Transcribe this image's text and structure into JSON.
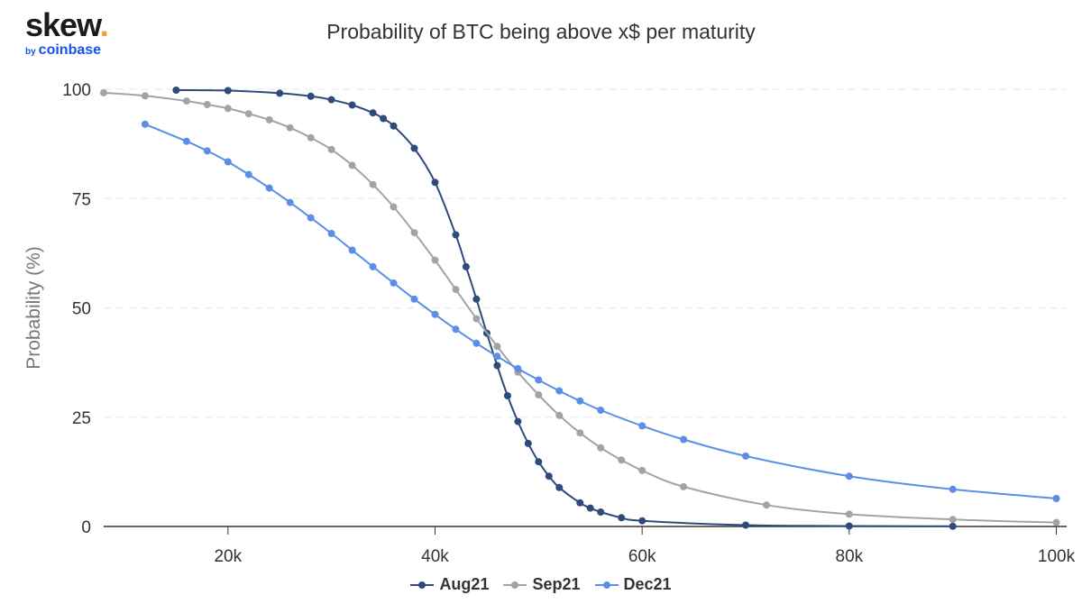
{
  "brand": {
    "name": "skew",
    "dot": ".",
    "by": "by",
    "parent": "coinbase"
  },
  "colors": {
    "aug": "#2f4b7c",
    "sep": "#a0a4a9",
    "dec": "#5b8ee6",
    "grid": "#e6e6e6",
    "axis": "#333333"
  },
  "chart_data": {
    "type": "line",
    "title": "Probability of BTC being above x$ per maturity",
    "xlabel": "",
    "ylabel": "Probability (%)",
    "xlim": [
      8000,
      101000
    ],
    "ylim": [
      0,
      100
    ],
    "x_ticks": [
      20000,
      40000,
      60000,
      80000,
      100000
    ],
    "x_tick_labels": [
      "20k",
      "40k",
      "60k",
      "80k",
      "100k"
    ],
    "y_ticks": [
      0,
      25,
      50,
      75,
      100
    ],
    "y_tick_labels": [
      "0",
      "25",
      "50",
      "75",
      "100"
    ],
    "legend_position": "bottom-center",
    "series": [
      {
        "name": "Aug21",
        "color": "#2f4b7c",
        "points": [
          [
            15000,
            99.8
          ],
          [
            20000,
            99.7
          ],
          [
            25000,
            99.1
          ],
          [
            28000,
            98.4
          ],
          [
            30000,
            97.6
          ],
          [
            32000,
            96.4
          ],
          [
            34000,
            94.6
          ],
          [
            35000,
            93.3
          ],
          [
            36000,
            91.6
          ],
          [
            38000,
            86.5
          ],
          [
            40000,
            78.7
          ],
          [
            42000,
            66.7
          ],
          [
            43000,
            59.4
          ],
          [
            44000,
            52.0
          ],
          [
            45000,
            44.2
          ],
          [
            46000,
            36.8
          ],
          [
            47000,
            29.9
          ],
          [
            48000,
            24.0
          ],
          [
            49000,
            19.0
          ],
          [
            50000,
            14.8
          ],
          [
            51000,
            11.5
          ],
          [
            52000,
            8.9
          ],
          [
            54000,
            5.4
          ],
          [
            55000,
            4.2
          ],
          [
            56000,
            3.3
          ],
          [
            58000,
            2.0
          ],
          [
            60000,
            1.3
          ],
          [
            70000,
            0.3
          ],
          [
            80000,
            0.1
          ],
          [
            90000,
            0.05
          ]
        ]
      },
      {
        "name": "Sep21",
        "color": "#a0a4a9",
        "points": [
          [
            8000,
            99.2
          ],
          [
            12000,
            98.5
          ],
          [
            16000,
            97.3
          ],
          [
            18000,
            96.5
          ],
          [
            20000,
            95.6
          ],
          [
            22000,
            94.4
          ],
          [
            24000,
            93.0
          ],
          [
            26000,
            91.2
          ],
          [
            28000,
            88.9
          ],
          [
            30000,
            86.2
          ],
          [
            32000,
            82.6
          ],
          [
            34000,
            78.2
          ],
          [
            36000,
            73.1
          ],
          [
            38000,
            67.2
          ],
          [
            40000,
            60.9
          ],
          [
            42000,
            54.2
          ],
          [
            44000,
            47.5
          ],
          [
            46000,
            41.2
          ],
          [
            48000,
            35.3
          ],
          [
            50000,
            30.1
          ],
          [
            52000,
            25.4
          ],
          [
            54000,
            21.4
          ],
          [
            56000,
            18.0
          ],
          [
            58000,
            15.2
          ],
          [
            60000,
            12.8
          ],
          [
            64000,
            9.1
          ],
          [
            72000,
            4.9
          ],
          [
            80000,
            2.8
          ],
          [
            90000,
            1.6
          ],
          [
            100000,
            0.9
          ]
        ]
      },
      {
        "name": "Dec21",
        "color": "#5b8ee6",
        "points": [
          [
            12000,
            92.0
          ],
          [
            16000,
            88.1
          ],
          [
            18000,
            85.9
          ],
          [
            20000,
            83.4
          ],
          [
            22000,
            80.5
          ],
          [
            24000,
            77.4
          ],
          [
            26000,
            74.1
          ],
          [
            28000,
            70.6
          ],
          [
            30000,
            67.0
          ],
          [
            32000,
            63.2
          ],
          [
            34000,
            59.4
          ],
          [
            36000,
            55.7
          ],
          [
            38000,
            52.0
          ],
          [
            40000,
            48.5
          ],
          [
            42000,
            45.1
          ],
          [
            44000,
            41.9
          ],
          [
            46000,
            38.9
          ],
          [
            48000,
            36.1
          ],
          [
            50000,
            33.5
          ],
          [
            52000,
            31.0
          ],
          [
            54000,
            28.7
          ],
          [
            56000,
            26.6
          ],
          [
            60000,
            23.0
          ],
          [
            64000,
            19.9
          ],
          [
            70000,
            16.1
          ],
          [
            80000,
            11.5
          ],
          [
            90000,
            8.5
          ],
          [
            100000,
            6.4
          ]
        ]
      }
    ]
  }
}
